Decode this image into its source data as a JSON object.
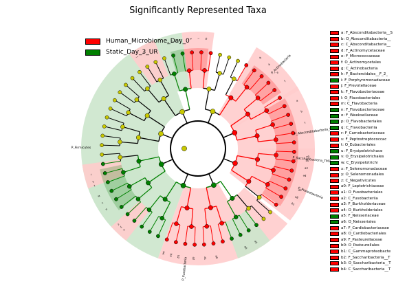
{
  "chart_data": {
    "type": "cladogram",
    "title": "Significantly Represented Taxa",
    "classes": [
      {
        "name": "Human_Microbiome_Day_0",
        "color": "#ff0000",
        "shade": "#ffcccc"
      },
      {
        "name": "Static_Day_3_UR",
        "color": "#008000",
        "shade": "#cce6cc"
      }
    ],
    "sector_labels": [
      {
        "id": "firmicutes",
        "text": "P_Firmicutes"
      },
      {
        "id": "actinobacteria",
        "text": "P_Actinobacteria"
      },
      {
        "id": "absconditabacteria",
        "text": "P_Absconditabacteria_SR1"
      },
      {
        "id": "fusobacteria",
        "text": "P_Fusobacteria"
      },
      {
        "id": "proteobacteria",
        "text": "P_Proteobacteria"
      },
      {
        "id": "saccharibacteria",
        "text": "P_Saccharibacteria_TM7"
      }
    ],
    "taxa": [
      {
        "code": "a",
        "name": "F_Absconditabacteria__S",
        "class": 0
      },
      {
        "code": "b",
        "name": "O_Absconditabacteria__",
        "class": 0
      },
      {
        "code": "c",
        "name": "C_Absconditabacteria__",
        "class": 0
      },
      {
        "code": "d",
        "name": "F_Actinomycetaceae",
        "class": 0
      },
      {
        "code": "e",
        "name": "F_Micrococcaceae",
        "class": 0
      },
      {
        "code": "f",
        "name": "O_Actinomycetales",
        "class": 0
      },
      {
        "code": "g",
        "name": "C_Actinobacteria",
        "class": 0
      },
      {
        "code": "h",
        "name": "F_Bacteroidales__F_2_",
        "class": 0
      },
      {
        "code": "i",
        "name": "F_Porphyromonadaceae",
        "class": 1
      },
      {
        "code": "j",
        "name": "F_Prevotellaceae",
        "class": 0
      },
      {
        "code": "k",
        "name": "F_Flavobacteriaceae",
        "class": 0
      },
      {
        "code": "l",
        "name": "O_Flavobacteriales",
        "class": 0
      },
      {
        "code": "m",
        "name": "C_Flavobacteria",
        "class": 0
      },
      {
        "code": "n",
        "name": "F_Flavobacteriaceae",
        "class": 1
      },
      {
        "code": "o",
        "name": "F_Weeksellaceae",
        "class": 1
      },
      {
        "code": "p",
        "name": "O_Flavobacteriales",
        "class": 1
      },
      {
        "code": "q",
        "name": "C_Flavobacteriia",
        "class": 1
      },
      {
        "code": "r",
        "name": "F_Carnobacteriaceae",
        "class": 0
      },
      {
        "code": "s",
        "name": "F_Peptostreptococcac",
        "class": 0
      },
      {
        "code": "t",
        "name": "O_Eubacteriales",
        "class": 0
      },
      {
        "code": "u",
        "name": "F_Erysipelotrichace",
        "class": 1
      },
      {
        "code": "v",
        "name": "O_Erysipelotrichales",
        "class": 1
      },
      {
        "code": "w",
        "name": "C_Erysipelotrichi",
        "class": 1
      },
      {
        "code": "x",
        "name": "F_Selenomonadaceae",
        "class": 0
      },
      {
        "code": "y",
        "name": "O_Selenomonadales",
        "class": 0
      },
      {
        "code": "z",
        "name": "C_Negativicutes",
        "class": 0
      },
      {
        "code": "a0",
        "name": "F_Leptotrichiaceae",
        "class": 0
      },
      {
        "code": "a1",
        "name": "O_Fusobacteriales",
        "class": 0
      },
      {
        "code": "a2",
        "name": "C_Fusobacteriia",
        "class": 0
      },
      {
        "code": "a3",
        "name": "F_Burkholderiaceae",
        "class": 0
      },
      {
        "code": "a4",
        "name": "O_Burkholderiales",
        "class": 0
      },
      {
        "code": "a5",
        "name": "F_Neisseriaceae",
        "class": 1
      },
      {
        "code": "a6",
        "name": "O_Neisseriales",
        "class": 1
      },
      {
        "code": "a7",
        "name": "F_Cardiobacteriaceae",
        "class": 0
      },
      {
        "code": "a8",
        "name": "O_Cardiobacteriales",
        "class": 0
      },
      {
        "code": "a9",
        "name": "F_Pasteurellaceae",
        "class": 0
      },
      {
        "code": "b0",
        "name": "O_Pasteurellales",
        "class": 0
      },
      {
        "code": "b1",
        "name": "C_Gammaproteobacte",
        "class": 0
      },
      {
        "code": "b2",
        "name": "F_Saccharibacteria__T",
        "class": 0
      },
      {
        "code": "b3",
        "name": "O_Saccharibacteria__T",
        "class": 0
      },
      {
        "code": "b4",
        "name": "C_Saccharibacteria__T",
        "class": 0
      }
    ],
    "neutral_node_color": "#c8c800"
  }
}
